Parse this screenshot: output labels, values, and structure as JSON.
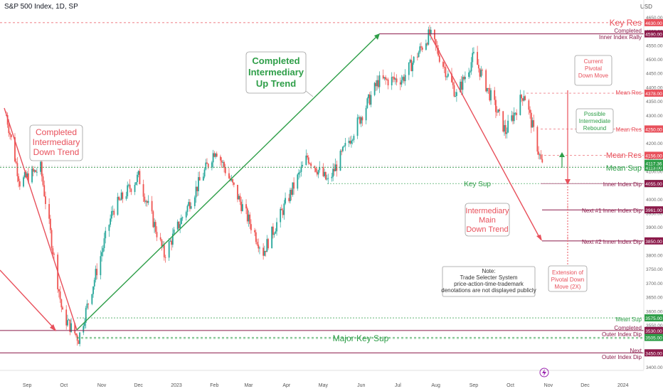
{
  "header": {
    "title": "S&P 500 Index, 1D, SP",
    "currency": "USD"
  },
  "chart_data": {
    "type": "candlestick",
    "title": "S&P 500 Index, 1D, SP",
    "ylim": [
      3350,
      4680
    ],
    "y_ticks": [
      3400,
      3450,
      3500,
      3550,
      3600,
      3650,
      3700,
      3750,
      3800,
      3850,
      3900,
      3950,
      4000,
      4050,
      4100,
      4150,
      4200,
      4250,
      4300,
      4350,
      4400,
      4450,
      4500,
      4550,
      4600,
      4650
    ],
    "x_ticks": [
      "Sep",
      "Oct",
      "Nov",
      "Dec",
      "2023",
      "Feb",
      "Mar",
      "Apr",
      "May",
      "Jun",
      "Jul",
      "Aug",
      "Sep",
      "Oct",
      "Nov",
      "Dec",
      "2024"
    ],
    "price_path": [
      {
        "date": "2022-08-15",
        "close": 4300
      },
      {
        "date": "2022-08-26",
        "close": 4060
      },
      {
        "date": "2022-09-12",
        "close": 4110
      },
      {
        "date": "2022-09-30",
        "close": 3585
      },
      {
        "date": "2022-10-13",
        "close": 3500
      },
      {
        "date": "2022-11-10",
        "close": 3960
      },
      {
        "date": "2022-12-01",
        "close": 4080
      },
      {
        "date": "2022-12-22",
        "close": 3800
      },
      {
        "date": "2023-02-02",
        "close": 4180
      },
      {
        "date": "2023-03-13",
        "close": 3810
      },
      {
        "date": "2023-04-18",
        "close": 4150
      },
      {
        "date": "2023-05-05",
        "close": 4060
      },
      {
        "date": "2023-06-15",
        "close": 4420
      },
      {
        "date": "2023-07-05",
        "close": 4430
      },
      {
        "date": "2023-07-27",
        "close": 4590
      },
      {
        "date": "2023-08-18",
        "close": 4370
      },
      {
        "date": "2023-09-01",
        "close": 4510
      },
      {
        "date": "2023-09-27",
        "close": 4240
      },
      {
        "date": "2023-10-12",
        "close": 4380
      },
      {
        "date": "2023-10-27",
        "close": 4117
      }
    ],
    "levels": [
      {
        "value": 4630,
        "label": "Key Res",
        "tag": "4630.00",
        "color": "#e8505b"
      },
      {
        "value": 4590,
        "label": "Completed Inner Index Rally",
        "tag": "4590.00",
        "color": "#8b1a4a"
      },
      {
        "value": 4378,
        "label": "Mean Res",
        "tag": "4378.00",
        "color": "#e8505b"
      },
      {
        "value": 4250,
        "label": "Mean Res",
        "tag": "4250.00",
        "color": "#e8505b"
      },
      {
        "value": 4156,
        "label": "Mean Res",
        "tag": "4156.00",
        "color": "#e8505b"
      },
      {
        "value": 4113,
        "label": "Mean Sup",
        "tag": "4113.00",
        "color": "#2e9e48"
      },
      {
        "value": 4055,
        "label": "Key Sup",
        "tag": "4055.00",
        "color": "#2e9e48"
      },
      {
        "value": 4055,
        "label": "Inner Index Dip",
        "tag": "4055.00",
        "color": "#8b1a4a"
      },
      {
        "value": 3961,
        "label": "Next #1 Inner Index Dip",
        "tag": "3961.00",
        "color": "#8b1a4a"
      },
      {
        "value": 3850,
        "label": "Next #2 Inner Index Dip",
        "tag": "3850.00",
        "color": "#8b1a4a"
      },
      {
        "value": 3575,
        "label": "Mean Sup",
        "tag": "3575.00",
        "color": "#2e9e48"
      },
      {
        "value": 3530,
        "label": "Completed Outer Index Dip",
        "tag": "3530.00",
        "color": "#8b1a4a"
      },
      {
        "value": 3505,
        "label": "Major Key Sup",
        "tag": "3505.00",
        "color": "#2e9e48"
      },
      {
        "value": 3450,
        "label": "Next Outer Index Dip",
        "tag": "3450.00",
        "color": "#8b1a4a"
      }
    ],
    "current_price_tag": "4117.36",
    "annotations": [
      {
        "text": "Completed Intermediary Down Trend",
        "color": "#e8505b"
      },
      {
        "text": "Completed Intermediary Up Trend",
        "color": "#2e9e48"
      },
      {
        "text": "Intermediary Main Down Trend",
        "color": "#e8505b"
      },
      {
        "text": "Current Pivotal Down Move",
        "color": "#e8505b"
      },
      {
        "text": "Possible Intermediate Rebound",
        "color": "#2e9e48"
      },
      {
        "text": "Extension of Pivotal Down Move (2X)",
        "color": "#e8505b"
      },
      {
        "text": "Note: Trade Selecter System price-action-time-trademark denotations are not displayed publicly",
        "color": "#333333"
      }
    ],
    "colors": {
      "up": "#26a69a",
      "down": "#ef5350",
      "red_line": "#e8505b",
      "green_line": "#2e9e48",
      "maroon": "#8b1a4a"
    }
  },
  "labels": {
    "key_res": "Key Res",
    "completed_a": "Completed",
    "inner_index_rally": "Inner Index Rally",
    "mean_res": "Mean Res",
    "mean_sup": "Mean Sup",
    "key_sup": "Key Sup",
    "inner_index_dip": "Inner Index Dip",
    "next1": "Next #1 Inner Index Dip",
    "next2": "Next #2 Inner Index Dip",
    "completed_b": "Completed",
    "outer_index_dip": "Outer Index Dip",
    "major_key_sup": "Major Key Sup",
    "next": "Next",
    "next_outer_index_dip": "Outer Index Dip",
    "down_trend_1": "Completed",
    "down_trend_2": "Intermediary",
    "down_trend_3": "Down Trend",
    "up_trend_1": "Completed",
    "up_trend_2": "Intermediary",
    "up_trend_3": "Up Trend",
    "main_1": "Intermediary",
    "main_2": "Main",
    "main_3": "Down Trend",
    "pivot_1": "Current",
    "pivot_2": "Pivotal",
    "pivot_3": "Down Move",
    "rebound_1": "Possible",
    "rebound_2": "Intermediate",
    "rebound_3": "Rebound",
    "ext_1": "Extension of",
    "ext_2": "Pivotal Down",
    "ext_3": "Move (2X)",
    "note_1": "Note:",
    "note_2": "Trade Selecter System",
    "note_3": "price-action-time-trademark",
    "note_4": "denotations are not displayed publicly"
  }
}
